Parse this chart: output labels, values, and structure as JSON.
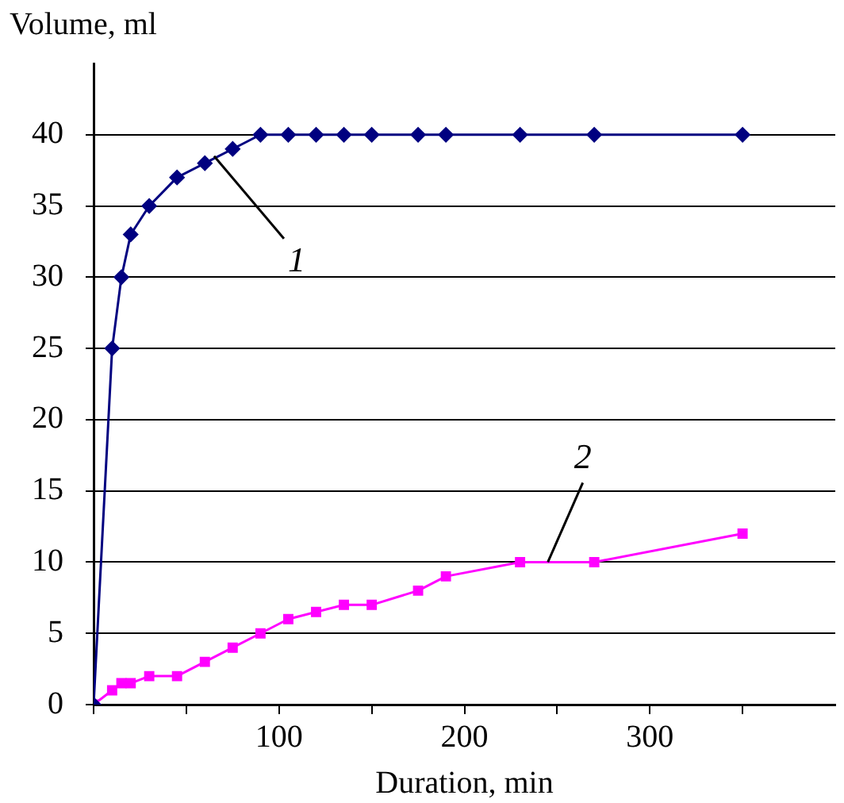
{
  "chart_data": {
    "type": "line",
    "xlabel": "Duration, min",
    "ylabel": "Volume, ml",
    "xlim": [
      0,
      400
    ],
    "xticks": [
      {
        "value": 0,
        "label": null
      },
      {
        "value": 50,
        "label": null
      },
      100,
      {
        "value": 150,
        "label": null
      },
      200,
      {
        "value": 250,
        "label": null
      },
      300,
      {
        "value": 350,
        "label": null
      }
    ],
    "ylim": [
      0,
      45
    ],
    "yticks": [
      0,
      5,
      10,
      15,
      20,
      25,
      30,
      35,
      40
    ],
    "grid": "y",
    "legend": false,
    "series": [
      {
        "color": "#000080",
        "marker": "diamond",
        "x": [
          0,
          10,
          15,
          20,
          30,
          45,
          60,
          75,
          90,
          105,
          120,
          135,
          150,
          175,
          190,
          230,
          270,
          350
        ],
        "values": [
          0,
          25,
          30,
          33,
          35,
          37,
          38,
          39,
          40,
          40,
          40,
          40,
          40,
          40,
          40,
          40,
          40,
          40
        ]
      },
      {
        "color": "#ff00ff",
        "marker": "square",
        "x": [
          0,
          10,
          15,
          20,
          30,
          45,
          60,
          75,
          90,
          105,
          120,
          135,
          150,
          175,
          190,
          230,
          270,
          350
        ],
        "values": [
          0,
          1,
          1.5,
          1.5,
          2,
          2,
          3,
          4,
          5,
          6,
          6.5,
          7,
          7,
          8,
          9,
          10,
          10,
          12
        ]
      }
    ],
    "annotations": [
      {
        "text": "1",
        "x": 65,
        "y": 38.5
      },
      {
        "text": "2",
        "x": 245,
        "y": 10
      }
    ]
  }
}
